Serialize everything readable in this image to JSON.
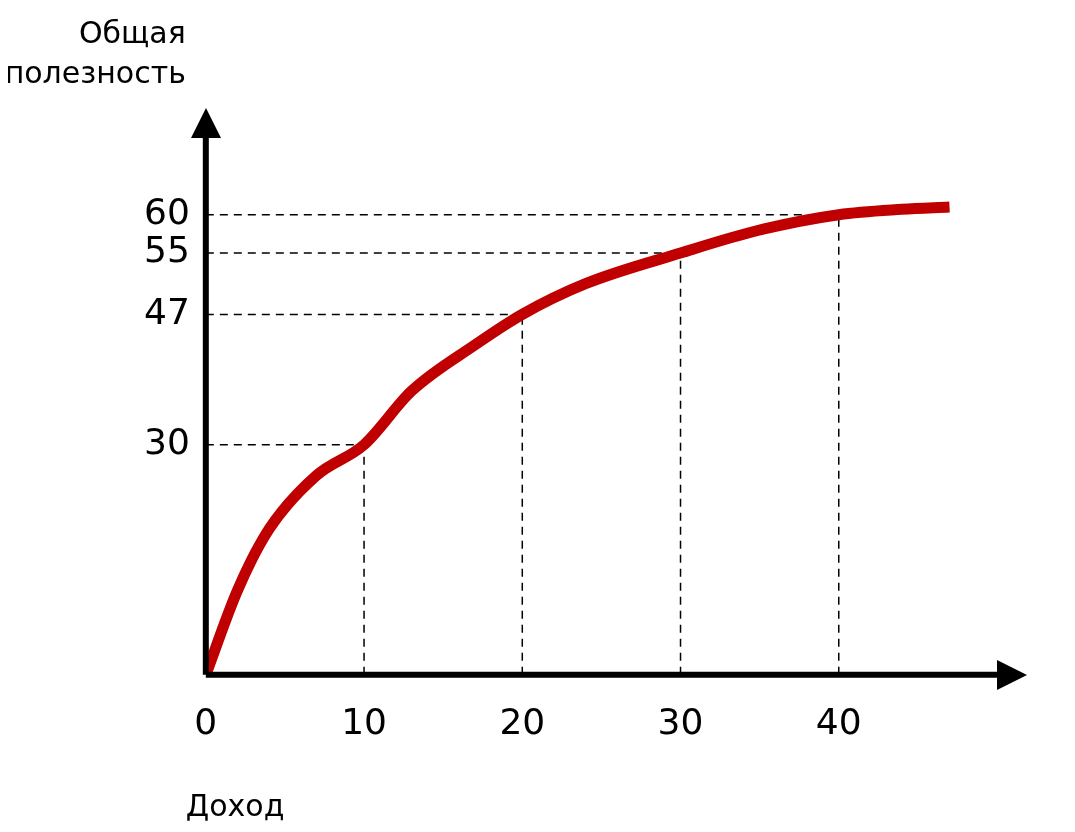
{
  "chart_data": {
    "type": "line",
    "xlabel": "Доход",
    "ylabel": "Общая полезность",
    "x": [
      0,
      2,
      4,
      7,
      10,
      13,
      17,
      20,
      24,
      30,
      35,
      40,
      44,
      47
    ],
    "series": [
      {
        "color": "#c00000",
        "values": [
          0,
          11,
          19,
          26,
          30,
          37,
          43,
          47,
          51,
          55,
          58,
          60,
          60.7,
          61
        ]
      }
    ],
    "xlim": [
      0,
      50
    ],
    "ylim": [
      0,
      70
    ],
    "xticks": [
      0,
      10,
      20,
      30,
      40
    ],
    "yticks": [
      30,
      47,
      55,
      60
    ],
    "grid": false,
    "legend": false,
    "marker": "none",
    "line_style": "solid",
    "ref_lines": [
      {
        "axis": "y",
        "value": 30,
        "line_style": "dashed",
        "color": "#000000"
      },
      {
        "axis": "y",
        "value": 47,
        "line_style": "dashed",
        "color": "#000000"
      },
      {
        "axis": "y",
        "value": 55,
        "line_style": "dashed",
        "color": "#000000"
      },
      {
        "axis": "y",
        "value": 60,
        "line_style": "dashed",
        "color": "#000000"
      },
      {
        "axis": "x",
        "value": 10,
        "line_style": "dashed",
        "color": "#000000"
      },
      {
        "axis": "x",
        "value": 20,
        "line_style": "dashed",
        "color": "#000000"
      },
      {
        "axis": "x",
        "value": 30,
        "line_style": "dashed",
        "color": "#000000"
      },
      {
        "axis": "x",
        "value": 40,
        "line_style": "dashed",
        "color": "#000000"
      }
    ]
  }
}
